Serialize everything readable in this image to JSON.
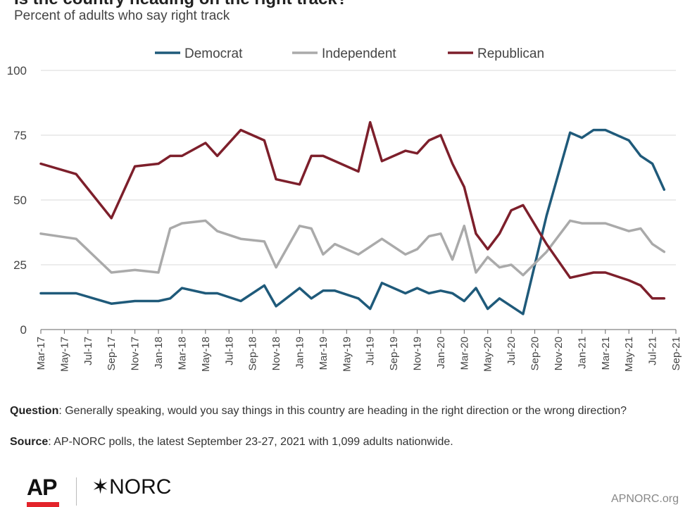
{
  "header": {
    "title": "Is the country heading on the right track?",
    "subtitle": "Percent of adults who say right track"
  },
  "chart_data": {
    "type": "line",
    "title": "Is the country heading on the right track?",
    "subtitle": "Percent of adults who say right track",
    "ylim": [
      0,
      100
    ],
    "yticks": [
      0,
      25,
      50,
      75,
      100
    ],
    "grid": true,
    "legend_position": "top",
    "x_range": [
      "2017-03",
      "2021-09"
    ],
    "x_tick_labels": [
      "Mar-17",
      "May-17",
      "Jul-17",
      "Sep-17",
      "Nov-17",
      "Jan-18",
      "Mar-18",
      "May-18",
      "Jul-18",
      "Sep-18",
      "Nov-18",
      "Jan-19",
      "Mar-19",
      "May-19",
      "Jul-19",
      "Sep-19",
      "Nov-19",
      "Jan-20",
      "Mar-20",
      "May-20",
      "Jul-20",
      "Sep-20",
      "Nov-20",
      "Jan-21",
      "Mar-21",
      "May-21",
      "Jul-21",
      "Sep-21"
    ],
    "series": [
      {
        "name": "Democrat",
        "color": "#1f5a7a",
        "points": [
          [
            "2017-03",
            14
          ],
          [
            "2017-06",
            14
          ],
          [
            "2017-09",
            10
          ],
          [
            "2017-11",
            11
          ],
          [
            "2018-01",
            11
          ],
          [
            "2018-02",
            12
          ],
          [
            "2018-03",
            16
          ],
          [
            "2018-05",
            14
          ],
          [
            "2018-06",
            14
          ],
          [
            "2018-08",
            11
          ],
          [
            "2018-10",
            17
          ],
          [
            "2018-11",
            9
          ],
          [
            "2019-01",
            16
          ],
          [
            "2019-02",
            12
          ],
          [
            "2019-03",
            15
          ],
          [
            "2019-04",
            15
          ],
          [
            "2019-06",
            12
          ],
          [
            "2019-07",
            8
          ],
          [
            "2019-08",
            18
          ],
          [
            "2019-10",
            14
          ],
          [
            "2019-11",
            16
          ],
          [
            "2019-12",
            14
          ],
          [
            "2020-01",
            15
          ],
          [
            "2020-02",
            14
          ],
          [
            "2020-03",
            11
          ],
          [
            "2020-04",
            16
          ],
          [
            "2020-05",
            8
          ],
          [
            "2020-06",
            12
          ],
          [
            "2020-08",
            6
          ],
          [
            "2020-10",
            44
          ],
          [
            "2020-12",
            76
          ],
          [
            "2021-01",
            74
          ],
          [
            "2021-02",
            77
          ],
          [
            "2021-03",
            77
          ],
          [
            "2021-05",
            73
          ],
          [
            "2021-06",
            67
          ],
          [
            "2021-07",
            64
          ],
          [
            "2021-08",
            54
          ]
        ]
      },
      {
        "name": "Independent",
        "color": "#aaaaaa",
        "points": [
          [
            "2017-03",
            37
          ],
          [
            "2017-06",
            35
          ],
          [
            "2017-09",
            22
          ],
          [
            "2017-11",
            23
          ],
          [
            "2018-01",
            22
          ],
          [
            "2018-02",
            39
          ],
          [
            "2018-03",
            41
          ],
          [
            "2018-05",
            42
          ],
          [
            "2018-06",
            38
          ],
          [
            "2018-08",
            35
          ],
          [
            "2018-10",
            34
          ],
          [
            "2018-11",
            24
          ],
          [
            "2019-01",
            40
          ],
          [
            "2019-02",
            39
          ],
          [
            "2019-03",
            29
          ],
          [
            "2019-04",
            33
          ],
          [
            "2019-06",
            29
          ],
          [
            "2019-08",
            35
          ],
          [
            "2019-10",
            29
          ],
          [
            "2019-11",
            31
          ],
          [
            "2019-12",
            36
          ],
          [
            "2020-01",
            37
          ],
          [
            "2020-02",
            27
          ],
          [
            "2020-03",
            40
          ],
          [
            "2020-04",
            22
          ],
          [
            "2020-05",
            28
          ],
          [
            "2020-06",
            24
          ],
          [
            "2020-07",
            25
          ],
          [
            "2020-08",
            21
          ],
          [
            "2020-10",
            30
          ],
          [
            "2020-12",
            42
          ],
          [
            "2021-01",
            41
          ],
          [
            "2021-02",
            41
          ],
          [
            "2021-03",
            41
          ],
          [
            "2021-05",
            38
          ],
          [
            "2021-06",
            39
          ],
          [
            "2021-07",
            33
          ],
          [
            "2021-08",
            30
          ]
        ]
      },
      {
        "name": "Republican",
        "color": "#7d1f2b",
        "points": [
          [
            "2017-03",
            64
          ],
          [
            "2017-06",
            60
          ],
          [
            "2017-09",
            43
          ],
          [
            "2017-11",
            63
          ],
          [
            "2018-01",
            64
          ],
          [
            "2018-02",
            67
          ],
          [
            "2018-03",
            67
          ],
          [
            "2018-05",
            72
          ],
          [
            "2018-06",
            67
          ],
          [
            "2018-08",
            77
          ],
          [
            "2018-10",
            73
          ],
          [
            "2018-11",
            58
          ],
          [
            "2019-01",
            56
          ],
          [
            "2019-02",
            67
          ],
          [
            "2019-03",
            67
          ],
          [
            "2019-06",
            61
          ],
          [
            "2019-07",
            80
          ],
          [
            "2019-08",
            65
          ],
          [
            "2019-10",
            69
          ],
          [
            "2019-11",
            68
          ],
          [
            "2019-12",
            73
          ],
          [
            "2020-01",
            75
          ],
          [
            "2020-02",
            64
          ],
          [
            "2020-03",
            55
          ],
          [
            "2020-04",
            37
          ],
          [
            "2020-05",
            31
          ],
          [
            "2020-06",
            37
          ],
          [
            "2020-07",
            46
          ],
          [
            "2020-08",
            48
          ],
          [
            "2020-10",
            33
          ],
          [
            "2020-12",
            20
          ],
          [
            "2021-01",
            21
          ],
          [
            "2021-02",
            22
          ],
          [
            "2021-03",
            22
          ],
          [
            "2021-05",
            19
          ],
          [
            "2021-06",
            17
          ],
          [
            "2021-07",
            12
          ],
          [
            "2021-08",
            12
          ]
        ]
      }
    ]
  },
  "footer": {
    "question_label": "Question",
    "question_text": ": Generally speaking, would you say things in this country are heading in the right direction or the wrong direction?",
    "source_label": "Source",
    "source_text": ": AP-NORC polls, the latest September 23-27, 2021 with 1,099 adults nationwide.",
    "logo_ap": "AP",
    "logo_norc": "✶NORC",
    "site": "APNORC.org"
  }
}
